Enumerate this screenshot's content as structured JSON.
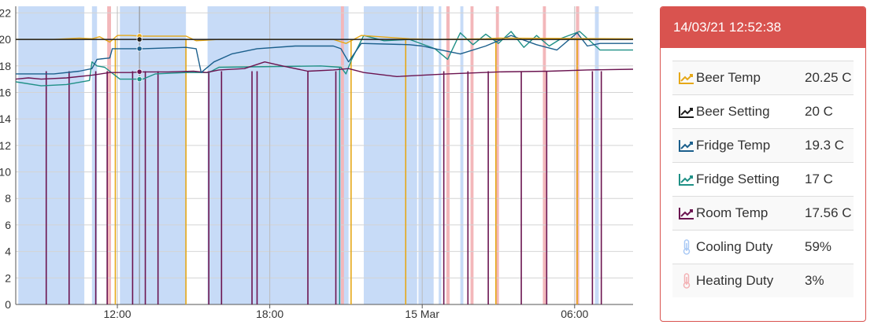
{
  "panel": {
    "title": "14/03/21 12:52:38",
    "rows": [
      {
        "label": "Beer Temp",
        "value": "20.25 C",
        "icon": "line-chart-icon",
        "color": "#e6a817"
      },
      {
        "label": "Beer Setting",
        "value": "20 C",
        "icon": "line-chart-icon",
        "color": "#1e1e1e"
      },
      {
        "label": "Fridge Temp",
        "value": "19.3 C",
        "icon": "line-chart-icon",
        "color": "#1b5f8c"
      },
      {
        "label": "Fridge Setting",
        "value": "17 C",
        "icon": "line-chart-icon",
        "color": "#1f9086"
      },
      {
        "label": "Room Temp",
        "value": "17.56 C",
        "icon": "line-chart-icon",
        "color": "#6b1450"
      },
      {
        "label": "Cooling Duty",
        "value": "59%",
        "icon": "thermometer-icon",
        "color": "#a9c9f5"
      },
      {
        "label": "Heating Duty",
        "value": "3%",
        "icon": "thermometer-icon",
        "color": "#f3b1b4"
      }
    ]
  },
  "chart_data": {
    "type": "line",
    "x_unit": "hours since 14 Mar 00:00",
    "xlim": [
      8.0,
      32.3
    ],
    "ylim": [
      0,
      22.5
    ],
    "yticks": [
      0,
      2,
      4,
      6,
      8,
      10,
      12,
      14,
      16,
      18,
      20,
      22
    ],
    "xticks": [
      {
        "x": 12,
        "label": "12:00"
      },
      {
        "x": 18,
        "label": "18:00"
      },
      {
        "x": 24,
        "label": "15 Mar"
      },
      {
        "x": 30,
        "label": "06:00"
      }
    ],
    "grid": true,
    "cursor_x": 12.87,
    "colors": {
      "cooling": "#c7dbf7",
      "heating": "#f3b7ba",
      "beer_temp": "#e6a817",
      "beer_setting": "#1e1e1e",
      "fridge_temp": "#1b5f8c",
      "fridge_setting": "#1f9086",
      "room_temp": "#6b1450"
    },
    "cooling_bands": [
      [
        8.1,
        10.7
      ],
      [
        11.0,
        11.2
      ],
      [
        12.1,
        14.7
      ],
      [
        15.55,
        21.1
      ],
      [
        21.7,
        23.8
      ],
      [
        23.85,
        24.45
      ],
      [
        24.65,
        24.75
      ],
      [
        25.5,
        25.62
      ],
      [
        30.8,
        30.95
      ]
    ],
    "heating_bands": [
      [
        11.6,
        11.75
      ],
      [
        20.8,
        20.92
      ],
      [
        24.95,
        25.08
      ],
      [
        25.9,
        26.02
      ],
      [
        26.9,
        27.02
      ],
      [
        28.75,
        28.87
      ],
      [
        30.05,
        30.18
      ]
    ],
    "series": [
      {
        "key": "beer_setting",
        "points": [
          [
            8.0,
            20.0
          ],
          [
            32.3,
            20.0
          ]
        ]
      },
      {
        "key": "beer_temp",
        "points": [
          [
            8.0,
            20.0
          ],
          [
            9.5,
            20.0
          ],
          [
            10.5,
            20.1
          ],
          [
            11.0,
            20.05
          ],
          [
            11.3,
            20.2
          ],
          [
            11.7,
            19.8
          ],
          [
            12.0,
            20.3
          ],
          [
            12.5,
            20.3
          ],
          [
            13.0,
            20.25
          ],
          [
            14.0,
            20.25
          ],
          [
            14.7,
            20.25
          ],
          [
            15.1,
            19.9
          ],
          [
            16.0,
            20.0
          ],
          [
            20.5,
            20.0
          ],
          [
            21.0,
            19.7
          ],
          [
            21.6,
            20.3
          ],
          [
            23.5,
            20.05
          ],
          [
            24.5,
            20.0
          ],
          [
            26.5,
            20.05
          ],
          [
            27.0,
            20.1
          ],
          [
            32.3,
            20.05
          ]
        ]
      },
      {
        "key": "fridge_temp",
        "points": [
          [
            8.0,
            17.4
          ],
          [
            9.5,
            17.4
          ],
          [
            10.5,
            17.6
          ],
          [
            11.0,
            17.8
          ],
          [
            11.2,
            18.5
          ],
          [
            11.7,
            18.6
          ],
          [
            11.8,
            19.3
          ],
          [
            12.5,
            19.3
          ],
          [
            13.0,
            19.3
          ],
          [
            14.7,
            19.4
          ],
          [
            15.1,
            19.3
          ],
          [
            15.3,
            17.5
          ],
          [
            15.8,
            18.3
          ],
          [
            16.5,
            18.9
          ],
          [
            17.5,
            19.3
          ],
          [
            19.0,
            19.5
          ],
          [
            20.5,
            19.5
          ],
          [
            20.8,
            19.3
          ],
          [
            21.1,
            18.3
          ],
          [
            21.6,
            19.7
          ],
          [
            23.5,
            19.6
          ],
          [
            24.0,
            19.5
          ],
          [
            24.5,
            19.3
          ],
          [
            25.5,
            18.9
          ],
          [
            26.5,
            19.5
          ],
          [
            27.5,
            20.3
          ],
          [
            28.5,
            19.6
          ],
          [
            29.3,
            19.2
          ],
          [
            30.1,
            20.5
          ],
          [
            30.5,
            19.5
          ],
          [
            31.0,
            19.7
          ],
          [
            32.3,
            19.7
          ]
        ]
      },
      {
        "key": "fridge_setting",
        "points": [
          [
            8.0,
            16.8
          ],
          [
            9.0,
            16.5
          ],
          [
            10.0,
            16.6
          ],
          [
            10.9,
            16.9
          ],
          [
            11.0,
            18.3
          ],
          [
            11.2,
            18.0
          ],
          [
            11.5,
            17.9
          ],
          [
            12.1,
            17.0
          ],
          [
            12.5,
            17.0
          ],
          [
            13.0,
            17.0
          ],
          [
            13.5,
            17.4
          ],
          [
            14.7,
            17.5
          ],
          [
            15.6,
            17.5
          ],
          [
            16.0,
            17.9
          ],
          [
            20.0,
            18.0
          ],
          [
            20.8,
            17.9
          ],
          [
            21.0,
            17.4
          ],
          [
            21.2,
            18.4
          ],
          [
            21.7,
            20.3
          ],
          [
            22.5,
            19.9
          ],
          [
            23.5,
            20.0
          ],
          [
            24.5,
            19.3
          ],
          [
            25.0,
            18.5
          ],
          [
            25.5,
            20.5
          ],
          [
            26.0,
            19.6
          ],
          [
            26.5,
            20.4
          ],
          [
            27.0,
            19.7
          ],
          [
            27.5,
            20.6
          ],
          [
            28.0,
            19.4
          ],
          [
            28.5,
            20.3
          ],
          [
            29.0,
            19.5
          ],
          [
            29.5,
            20.1
          ],
          [
            30.2,
            20.6
          ],
          [
            31.0,
            19.2
          ],
          [
            32.3,
            19.2
          ]
        ]
      },
      {
        "key": "room_temp",
        "points": [
          [
            8.0,
            17.0
          ],
          [
            8.5,
            17.1
          ],
          [
            9.0,
            17.0
          ],
          [
            10.0,
            17.1
          ],
          [
            11.0,
            17.3
          ],
          [
            11.7,
            17.5
          ],
          [
            12.5,
            17.5
          ],
          [
            13.0,
            17.55
          ],
          [
            14.0,
            17.55
          ],
          [
            15.0,
            17.6
          ],
          [
            15.5,
            17.5
          ],
          [
            16.0,
            17.7
          ],
          [
            17.0,
            17.8
          ],
          [
            17.8,
            18.3
          ],
          [
            18.5,
            18.0
          ],
          [
            19.5,
            17.6
          ],
          [
            20.5,
            17.7
          ],
          [
            21.1,
            17.8
          ],
          [
            21.7,
            17.5
          ],
          [
            23.0,
            17.2
          ],
          [
            25.0,
            17.4
          ],
          [
            27.0,
            17.55
          ],
          [
            29.0,
            17.6
          ],
          [
            30.5,
            17.7
          ],
          [
            32.3,
            17.75
          ]
        ]
      }
    ],
    "room_temp_dropouts": [
      9.2,
      10.1,
      11.15,
      11.6,
      12.6,
      13.1,
      13.6,
      15.6,
      16.1,
      17.3,
      17.5,
      19.5,
      20.6,
      24.85,
      25.8,
      26.6,
      27.9,
      28.9,
      30.7,
      31.05
    ],
    "beer_temp_dropouts": [
      11.92,
      14.7,
      21.2,
      23.35,
      26.9,
      30.1
    ],
    "fridge_setting_dropouts": [
      20.75
    ],
    "markers": [
      {
        "key": "beer_temp",
        "y": 20.25
      },
      {
        "key": "beer_setting",
        "y": 20.0
      },
      {
        "key": "fridge_temp",
        "y": 19.3
      },
      {
        "key": "room_temp",
        "y": 17.56
      },
      {
        "key": "fridge_setting",
        "y": 17.0
      }
    ]
  }
}
